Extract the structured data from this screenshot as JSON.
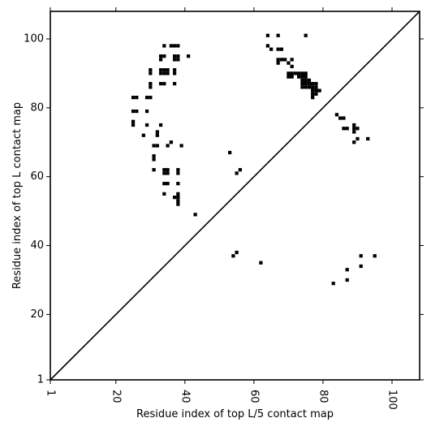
{
  "chart_data": {
    "type": "heatmap",
    "subtype": "contact-map-comparison",
    "xlabel": "Residue index of top L/5 contact map",
    "ylabel": "Residue index of top L contact map",
    "xlim": [
      1,
      108
    ],
    "ylim": [
      1,
      108
    ],
    "x_ticks": [
      1,
      20,
      40,
      60,
      80,
      100
    ],
    "y_ticks": [
      1,
      20,
      40,
      60,
      80,
      100
    ],
    "x_tick_labels": [
      "1",
      "20",
      "40",
      "60",
      "80",
      "100"
    ],
    "y_tick_labels": [
      "1",
      "20",
      "40",
      "60",
      "80",
      "100"
    ],
    "x_tick_rotation": -90,
    "diagonal_line": true,
    "grid": false,
    "cell_color": "#000000",
    "background_color": "#ffffff",
    "contacts": [
      [
        34,
        98
      ],
      [
        36,
        98
      ],
      [
        37,
        98
      ],
      [
        38,
        98
      ],
      [
        33,
        95
      ],
      [
        34,
        95
      ],
      [
        37,
        95
      ],
      [
        38,
        95
      ],
      [
        41,
        95
      ],
      [
        33,
        94
      ],
      [
        37,
        94
      ],
      [
        38,
        94
      ],
      [
        30,
        91
      ],
      [
        33,
        91
      ],
      [
        34,
        91
      ],
      [
        35,
        91
      ],
      [
        37,
        91
      ],
      [
        30,
        90
      ],
      [
        33,
        90
      ],
      [
        34,
        90
      ],
      [
        35,
        90
      ],
      [
        37,
        90
      ],
      [
        33,
        87
      ],
      [
        34,
        87
      ],
      [
        37,
        87
      ],
      [
        30,
        87
      ],
      [
        30,
        86
      ],
      [
        25,
        83
      ],
      [
        26,
        83
      ],
      [
        29,
        83
      ],
      [
        30,
        83
      ],
      [
        25,
        79
      ],
      [
        26,
        79
      ],
      [
        29,
        79
      ],
      [
        25,
        76
      ],
      [
        25,
        75
      ],
      [
        29,
        75
      ],
      [
        33,
        75
      ],
      [
        28,
        72
      ],
      [
        32,
        73
      ],
      [
        32,
        72
      ],
      [
        36,
        70
      ],
      [
        31,
        69
      ],
      [
        32,
        69
      ],
      [
        35,
        69
      ],
      [
        39,
        69
      ],
      [
        31,
        66
      ],
      [
        31,
        65
      ],
      [
        31,
        62
      ],
      [
        34,
        62
      ],
      [
        35,
        62
      ],
      [
        38,
        62
      ],
      [
        34,
        61
      ],
      [
        35,
        61
      ],
      [
        38,
        61
      ],
      [
        34,
        58
      ],
      [
        35,
        58
      ],
      [
        38,
        58
      ],
      [
        34,
        55
      ],
      [
        37,
        54
      ],
      [
        38,
        54
      ],
      [
        38,
        55
      ],
      [
        38,
        53
      ],
      [
        38,
        52
      ],
      [
        43,
        49
      ],
      [
        53,
        67
      ],
      [
        56,
        62
      ],
      [
        55,
        61
      ],
      [
        64,
        101
      ],
      [
        67,
        101
      ],
      [
        75,
        101
      ],
      [
        64,
        98
      ],
      [
        65,
        97
      ],
      [
        67,
        97
      ],
      [
        68,
        97
      ],
      [
        67,
        94
      ],
      [
        68,
        94
      ],
      [
        69,
        94
      ],
      [
        71,
        94
      ],
      [
        67,
        93
      ],
      [
        70,
        93
      ],
      [
        71,
        92
      ],
      [
        70,
        90
      ],
      [
        71,
        90
      ],
      [
        72,
        90
      ],
      [
        73,
        90
      ],
      [
        74,
        90
      ],
      [
        75,
        90
      ],
      [
        70,
        89
      ],
      [
        71,
        89
      ],
      [
        73,
        89
      ],
      [
        74,
        89
      ],
      [
        75,
        89
      ],
      [
        74,
        88
      ],
      [
        75,
        88
      ],
      [
        76,
        88
      ],
      [
        74,
        87
      ],
      [
        75,
        87
      ],
      [
        76,
        87
      ],
      [
        77,
        87
      ],
      [
        78,
        87
      ],
      [
        74,
        86
      ],
      [
        75,
        86
      ],
      [
        76,
        86
      ],
      [
        77,
        86
      ],
      [
        78,
        86
      ],
      [
        77,
        85
      ],
      [
        78,
        85
      ],
      [
        79,
        85
      ],
      [
        77,
        84
      ],
      [
        78,
        84
      ],
      [
        77,
        83
      ],
      [
        84,
        78
      ],
      [
        85,
        77
      ],
      [
        86,
        77
      ],
      [
        86,
        74
      ],
      [
        87,
        74
      ],
      [
        89,
        75
      ],
      [
        89,
        74
      ],
      [
        90,
        74
      ],
      [
        89,
        73
      ],
      [
        90,
        71
      ],
      [
        93,
        71
      ],
      [
        89,
        70
      ],
      [
        55,
        38
      ],
      [
        54,
        37
      ],
      [
        62,
        35
      ],
      [
        91,
        37
      ],
      [
        95,
        37
      ],
      [
        91,
        34
      ],
      [
        87,
        33
      ],
      [
        87,
        30
      ],
      [
        83,
        29
      ]
    ]
  }
}
